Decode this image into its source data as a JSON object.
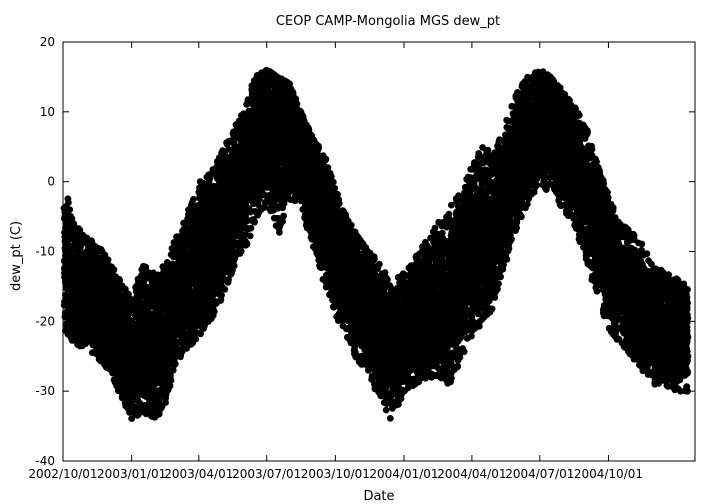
{
  "chart_data": {
    "type": "scatter",
    "title": "CEOP CAMP-Mongolia MGS  dew_pt",
    "xlabel": "Date",
    "ylabel": "dew_pt (C)",
    "x_type": "date",
    "xlim": [
      "2002-10-01",
      "2005-01-25"
    ],
    "ylim": [
      -40,
      20
    ],
    "grid": false,
    "x_ticks": [
      "2002/10/01",
      "2003/01/01",
      "2003/04/01",
      "2003/07/01",
      "2003/10/01",
      "2004/01/01",
      "2004/04/01",
      "2004/07/01",
      "2004/10/01"
    ],
    "y_ticks": [
      20,
      10,
      0,
      -10,
      -20,
      -30,
      -40
    ],
    "marker_color": "#000000",
    "series": [
      {
        "points": [
          {
            "x": "2002-10-03",
            "y_mean": -12,
            "y_min": -21,
            "y_max": 0
          },
          {
            "x": "2002-10-15",
            "y_mean": -15,
            "y_min": -23,
            "y_max": -6
          },
          {
            "x": "2002-11-01",
            "y_mean": -16,
            "y_min": -24,
            "y_max": -8
          },
          {
            "x": "2002-11-15",
            "y_mean": -17,
            "y_min": -25,
            "y_max": -9
          },
          {
            "x": "2002-12-01",
            "y_mean": -19,
            "y_min": -27,
            "y_max": -11
          },
          {
            "x": "2002-12-15",
            "y_mean": -22,
            "y_min": -30,
            "y_max": -14
          },
          {
            "x": "2003-01-01",
            "y_mean": -25,
            "y_min": -34,
            "y_max": -17
          },
          {
            "x": "2003-01-15",
            "y_mean": -22,
            "y_min": -33,
            "y_max": -12
          },
          {
            "x": "2003-02-01",
            "y_mean": -23,
            "y_min": -34,
            "y_max": -13
          },
          {
            "x": "2003-02-15",
            "y_mean": -21,
            "y_min": -32,
            "y_max": -12
          },
          {
            "x": "2003-03-01",
            "y_mean": -17,
            "y_min": -26,
            "y_max": -8
          },
          {
            "x": "2003-03-15",
            "y_mean": -15,
            "y_min": -24,
            "y_max": -5
          },
          {
            "x": "2003-04-01",
            "y_mean": -12,
            "y_min": -22,
            "y_max": 0
          },
          {
            "x": "2003-04-15",
            "y_mean": -10,
            "y_min": -20,
            "y_max": 1
          },
          {
            "x": "2003-05-01",
            "y_mean": -6,
            "y_min": -17,
            "y_max": 4
          },
          {
            "x": "2003-05-15",
            "y_mean": -3,
            "y_min": -13,
            "y_max": 7
          },
          {
            "x": "2003-06-01",
            "y_mean": 1,
            "y_min": -10,
            "y_max": 10
          },
          {
            "x": "2003-06-15",
            "y_mean": 5,
            "y_min": -6,
            "y_max": 15
          },
          {
            "x": "2003-07-01",
            "y_mean": 8,
            "y_min": -3,
            "y_max": 16
          },
          {
            "x": "2003-07-15",
            "y_mean": 9,
            "y_min": -8,
            "y_max": 15
          },
          {
            "x": "2003-08-01",
            "y_mean": 7,
            "y_min": -3,
            "y_max": 14
          },
          {
            "x": "2003-08-15",
            "y_mean": 5,
            "y_min": -4,
            "y_max": 10
          },
          {
            "x": "2003-09-01",
            "y_mean": 0,
            "y_min": -9,
            "y_max": 6
          },
          {
            "x": "2003-09-15",
            "y_mean": -4,
            "y_min": -14,
            "y_max": 4
          },
          {
            "x": "2003-10-01",
            "y_mean": -9,
            "y_min": -19,
            "y_max": -1
          },
          {
            "x": "2003-10-15",
            "y_mean": -12,
            "y_min": -22,
            "y_max": -5
          },
          {
            "x": "2003-11-01",
            "y_mean": -16,
            "y_min": -26,
            "y_max": -8
          },
          {
            "x": "2003-11-15",
            "y_mean": -19,
            "y_min": -28,
            "y_max": -10
          },
          {
            "x": "2003-12-01",
            "y_mean": -22,
            "y_min": -31,
            "y_max": -12
          },
          {
            "x": "2003-12-15",
            "y_mean": -24,
            "y_min": -34,
            "y_max": -14
          },
          {
            "x": "2004-01-01",
            "y_mean": -22,
            "y_min": -30,
            "y_max": -13
          },
          {
            "x": "2004-01-15",
            "y_mean": -20,
            "y_min": -29,
            "y_max": -11
          },
          {
            "x": "2004-02-01",
            "y_mean": -19,
            "y_min": -28,
            "y_max": -8
          },
          {
            "x": "2004-02-15",
            "y_mean": -18,
            "y_min": -28,
            "y_max": -6
          },
          {
            "x": "2004-03-01",
            "y_mean": -17,
            "y_min": -29,
            "y_max": -4
          },
          {
            "x": "2004-03-15",
            "y_mean": -13,
            "y_min": -26,
            "y_max": -2
          },
          {
            "x": "2004-04-01",
            "y_mean": -10,
            "y_min": -22,
            "y_max": 2
          },
          {
            "x": "2004-04-15",
            "y_mean": -8,
            "y_min": -20,
            "y_max": 5
          },
          {
            "x": "2004-05-01",
            "y_mean": -6,
            "y_min": -18,
            "y_max": 4
          },
          {
            "x": "2004-05-15",
            "y_mean": -2,
            "y_min": -12,
            "y_max": 8
          },
          {
            "x": "2004-06-01",
            "y_mean": 3,
            "y_min": -6,
            "y_max": 13
          },
          {
            "x": "2004-06-15",
            "y_mean": 6,
            "y_min": -3,
            "y_max": 15
          },
          {
            "x": "2004-07-01",
            "y_mean": 8,
            "y_min": 0,
            "y_max": 16
          },
          {
            "x": "2004-07-15",
            "y_mean": 8,
            "y_min": -2,
            "y_max": 15
          },
          {
            "x": "2004-08-01",
            "y_mean": 6,
            "y_min": -4,
            "y_max": 13
          },
          {
            "x": "2004-08-15",
            "y_mean": 3,
            "y_min": -6,
            "y_max": 11
          },
          {
            "x": "2004-09-01",
            "y_mean": -2,
            "y_min": -11,
            "y_max": 8
          },
          {
            "x": "2004-09-15",
            "y_mean": -6,
            "y_min": -16,
            "y_max": 3
          },
          {
            "x": "2004-10-01",
            "y_mean": -11,
            "y_min": -21,
            "y_max": -2
          },
          {
            "x": "2004-10-15",
            "y_mean": -14,
            "y_min": -23,
            "y_max": -6
          },
          {
            "x": "2004-11-01",
            "y_mean": -16,
            "y_min": -25,
            "y_max": -7
          },
          {
            "x": "2004-11-15",
            "y_mean": -18,
            "y_min": -27,
            "y_max": -9
          },
          {
            "x": "2004-12-01",
            "y_mean": -20,
            "y_min": -29,
            "y_max": -12
          },
          {
            "x": "2004-12-15",
            "y_mean": -21,
            "y_min": -29,
            "y_max": -13
          },
          {
            "x": "2005-01-01",
            "y_mean": -22,
            "y_min": -30,
            "y_max": -14
          },
          {
            "x": "2005-01-15",
            "y_mean": -23,
            "y_min": -30,
            "y_max": -15
          }
        ]
      }
    ]
  }
}
